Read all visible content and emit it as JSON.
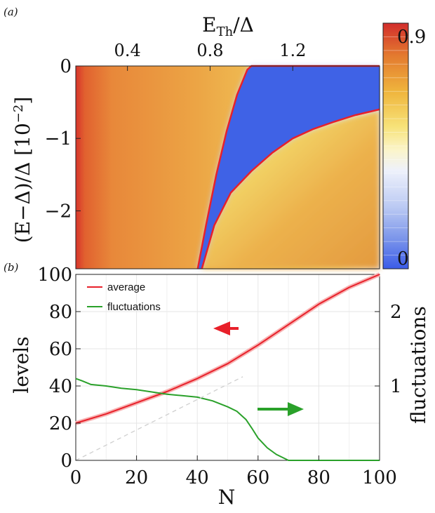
{
  "panel_labels": {
    "a": "(a)",
    "b": "(b)"
  },
  "chart_data": [
    {
      "type": "heatmap",
      "panel": "(a)",
      "xlabel_top": "E_Th/Δ",
      "xlabel_top_main": "E",
      "xlabel_top_sub": "Th",
      "xlabel_top_rest": "/Δ",
      "x_ticks": [
        "0.4",
        "0.8",
        "1.2"
      ],
      "x_tick_values": [
        0.4,
        0.8,
        1.2
      ],
      "xlim": [
        0.15,
        1.62
      ],
      "ylabel": "(E−Δ)/Δ [10⁻²]",
      "ylabel_main": "(E−Δ)/Δ [10",
      "ylabel_exp": "−2",
      "ylabel_close": "]",
      "y_ticks": [
        "0",
        "−1",
        "−2"
      ],
      "y_tick_values": [
        0,
        -1,
        -2
      ],
      "ylim": [
        -2.8,
        0
      ],
      "colorbar": {
        "min_label": "0",
        "max_label": "0.9",
        "min": 0,
        "max": 0.9
      },
      "gap_edges": [
        {
          "name": "",
          "color": "#e8202a",
          "x": [
            0.74,
            0.78,
            0.83,
            0.88,
            0.93,
            0.98,
            1.0,
            1.62
          ],
          "y": [
            -2.8,
            -2.2,
            -1.5,
            -0.9,
            -0.4,
            -0.05,
            0,
            0
          ]
        },
        {
          "name": "",
          "color": "#e8202a",
          "x": [
            0.76,
            0.82,
            0.9,
            1.0,
            1.1,
            1.2,
            1.3,
            1.4,
            1.5,
            1.62
          ],
          "y": [
            -2.8,
            -2.2,
            -1.75,
            -1.45,
            -1.2,
            -1.0,
            -0.87,
            -0.77,
            -0.68,
            -0.6
          ]
        }
      ]
    },
    {
      "type": "line",
      "panel": "(b)",
      "xlabel": "N",
      "x_ticks": [
        "0",
        "20",
        "40",
        "60",
        "80",
        "100"
      ],
      "xlim": [
        0,
        100
      ],
      "ylabel": "levels",
      "y_ticks": [
        "0",
        "20",
        "40",
        "60",
        "80",
        "100"
      ],
      "ylim": [
        0,
        100
      ],
      "ylabel_right": "fluctuations",
      "y_right_ticks": [
        "1",
        "2"
      ],
      "ylim_right": [
        0,
        2.5
      ],
      "legend_position": "top-left",
      "series": [
        {
          "name": "average",
          "color": "#e8202a",
          "axis": "left",
          "x": [
            0,
            10,
            20,
            30,
            40,
            50,
            60,
            70,
            80,
            90,
            100
          ],
          "y": [
            20,
            25,
            31,
            37,
            44,
            52,
            62,
            73,
            84,
            93,
            100
          ]
        },
        {
          "name": "fluctuations",
          "color": "#2aa12a",
          "axis": "right",
          "x": [
            0,
            2,
            5,
            10,
            15,
            20,
            25,
            30,
            35,
            40,
            45,
            50,
            53,
            56,
            58,
            60,
            63,
            66,
            69,
            70,
            72,
            80,
            90,
            100
          ],
          "y": [
            1.1,
            1.07,
            1.02,
            1.0,
            0.97,
            0.95,
            0.92,
            0.89,
            0.87,
            0.85,
            0.8,
            0.72,
            0.66,
            0.55,
            0.43,
            0.3,
            0.17,
            0.08,
            0.02,
            0,
            0,
            0,
            0,
            0
          ]
        },
        {
          "name": "",
          "color": "#cfcfcf",
          "axis": "left",
          "dashed": true,
          "x": [
            0,
            55
          ],
          "y": [
            0,
            45
          ]
        }
      ],
      "arrows": [
        {
          "name": "average-arrow",
          "color": "#e8202a",
          "direction": "left"
        },
        {
          "name": "fluctuations-arrow",
          "color": "#2aa12a",
          "direction": "right"
        }
      ]
    }
  ]
}
